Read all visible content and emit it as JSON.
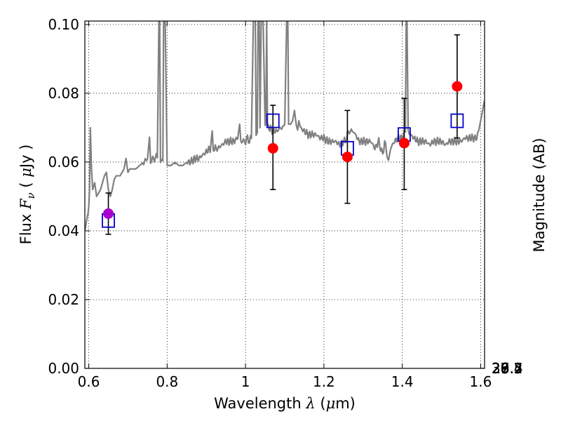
{
  "chart_data": {
    "type": "scatter",
    "xlabel_text": "Wavelength",
    "xlabel_symbol": "λ",
    "xlabel_unit_open": " (",
    "xlabel_unit_symbol": "μ",
    "xlabel_unit_close": "m)",
    "ylabel_text": "Flux",
    "ylabel_symbol": "F",
    "ylabel_sub": "ν",
    "ylabel_unit_open": " ( ",
    "ylabel_unit_symbol": "μ",
    "ylabel_unit_close": "Jy )",
    "y2label": "Magnitude (AB)",
    "xlim": [
      0.59,
      1.61
    ],
    "ylim": [
      0.0,
      0.101
    ],
    "grid": true,
    "x_ticks": [
      {
        "value": 0.6,
        "label": "0.6"
      },
      {
        "value": 0.8,
        "label": "0.8"
      },
      {
        "value": 1.0,
        "label": "1"
      },
      {
        "value": 1.2,
        "label": "1.2"
      },
      {
        "value": 1.4,
        "label": "1.4"
      },
      {
        "value": 1.6,
        "label": "1.6"
      }
    ],
    "y_ticks": [
      {
        "value": 0.0,
        "label": "0.00"
      },
      {
        "value": 0.02,
        "label": "0.02"
      },
      {
        "value": 0.04,
        "label": "0.04"
      },
      {
        "value": 0.06,
        "label": "0.06"
      },
      {
        "value": 0.08,
        "label": "0.08"
      },
      {
        "value": 0.1,
        "label": "0.10"
      }
    ],
    "y2_ticks": [
      {
        "value": 26.4,
        "label": "26.4"
      },
      {
        "value": 26.5,
        "label": "26.5"
      },
      {
        "value": 26.7,
        "label": "26.7"
      },
      {
        "value": 27.0,
        "label": "27"
      },
      {
        "value": 27.2,
        "label": "27.2"
      },
      {
        "value": 27.5,
        "label": "27.5"
      },
      {
        "value": 28.0,
        "label": "28"
      },
      {
        "value": 28.5,
        "label": "28.5"
      },
      {
        "value": 29.0,
        "label": "29"
      },
      {
        "value": 30.0,
        "label": "30"
      }
    ],
    "spectrum_color": "#808080",
    "spectrum": {
      "x": [
        0.59,
        0.593,
        0.596,
        0.598,
        0.6,
        0.602,
        0.604,
        0.607,
        0.61,
        0.615,
        0.62,
        0.625,
        0.63,
        0.635,
        0.64,
        0.645,
        0.65,
        0.655,
        0.66,
        0.665,
        0.67,
        0.68,
        0.69,
        0.695,
        0.7,
        0.705,
        0.71,
        0.72,
        0.73,
        0.74,
        0.75,
        0.755,
        0.758,
        0.761,
        0.765,
        0.77,
        0.775,
        0.779,
        0.781,
        0.783,
        0.785,
        0.787,
        0.789,
        0.791,
        0.795,
        0.8,
        0.81,
        0.82,
        0.83,
        0.84,
        0.85,
        0.86,
        0.87,
        0.88,
        0.89,
        0.9,
        0.91,
        0.915,
        0.918,
        0.921,
        0.925,
        0.93,
        0.94,
        0.95,
        0.96,
        0.97,
        0.98,
        0.985,
        0.988,
        0.99,
        0.992,
        0.995,
        1.0,
        1.005,
        1.01,
        1.015,
        1.02,
        1.025,
        1.027,
        1.03,
        1.032,
        1.035,
        1.037,
        1.04,
        1.045,
        1.05,
        1.052,
        1.054,
        1.056,
        1.06,
        1.07,
        1.08,
        1.09,
        1.095,
        1.1,
        1.105,
        1.108,
        1.11,
        1.112,
        1.115,
        1.12,
        1.125,
        1.13,
        1.133,
        1.136,
        1.14,
        1.15,
        1.16,
        1.17,
        1.18,
        1.19,
        1.2,
        1.21,
        1.22,
        1.23,
        1.24,
        1.25,
        1.255,
        1.26,
        1.265,
        1.27,
        1.275,
        1.28,
        1.29,
        1.3,
        1.31,
        1.32,
        1.33,
        1.34,
        1.345,
        1.35,
        1.355,
        1.36,
        1.365,
        1.37,
        1.38,
        1.39,
        1.4,
        1.405,
        1.408,
        1.41,
        1.412,
        1.415,
        1.42,
        1.43,
        1.44,
        1.45,
        1.46,
        1.47,
        1.48,
        1.49,
        1.5,
        1.51,
        1.52,
        1.53,
        1.54,
        1.55,
        1.56,
        1.57,
        1.58,
        1.59,
        1.595,
        1.6,
        1.605,
        1.61
      ],
      "y": [
        0.04,
        0.042,
        0.044,
        0.045,
        0.047,
        0.052,
        0.07,
        0.058,
        0.052,
        0.054,
        0.05,
        0.051,
        0.052,
        0.054,
        0.056,
        0.057,
        0.052,
        0.05,
        0.052,
        0.055,
        0.056,
        0.056,
        0.058,
        0.061,
        0.057,
        0.058,
        0.058,
        0.058,
        0.059,
        0.06,
        0.061,
        0.067,
        0.06,
        0.061,
        0.061,
        0.061,
        0.062,
        0.101,
        0.101,
        0.061,
        0.06,
        0.06,
        0.061,
        0.101,
        0.101,
        0.059,
        0.059,
        0.06,
        0.059,
        0.059,
        0.06,
        0.06,
        0.061,
        0.061,
        0.062,
        0.063,
        0.064,
        0.068,
        0.064,
        0.064,
        0.064,
        0.064,
        0.065,
        0.066,
        0.066,
        0.066,
        0.067,
        0.071,
        0.066,
        0.066,
        0.066,
        0.066,
        0.066,
        0.067,
        0.066,
        0.067,
        0.101,
        0.101,
        0.068,
        0.068,
        0.101,
        0.101,
        0.07,
        0.101,
        0.101,
        0.07,
        0.072,
        0.101,
        0.07,
        0.07,
        0.069,
        0.069,
        0.07,
        0.07,
        0.071,
        0.101,
        0.101,
        0.071,
        0.071,
        0.071,
        0.072,
        0.075,
        0.07,
        0.069,
        0.072,
        0.07,
        0.069,
        0.068,
        0.068,
        0.068,
        0.067,
        0.067,
        0.066,
        0.066,
        0.066,
        0.065,
        0.066,
        0.066,
        0.068,
        0.069,
        0.069,
        0.069,
        0.068,
        0.066,
        0.066,
        0.066,
        0.066,
        0.064,
        0.066,
        0.064,
        0.062,
        0.066,
        0.063,
        0.06,
        0.064,
        0.066,
        0.067,
        0.067,
        0.068,
        0.069,
        0.101,
        0.101,
        0.069,
        0.068,
        0.067,
        0.066,
        0.066,
        0.066,
        0.065,
        0.066,
        0.066,
        0.066,
        0.065,
        0.066,
        0.066,
        0.066,
        0.066,
        0.067,
        0.067,
        0.067,
        0.067,
        0.069,
        0.072,
        0.075,
        0.078
      ]
    },
    "spectrum_stretches": [
      {
        "y_min": 0.06,
        "y_max": 0.0645,
        "amplitude": 0.0012
      },
      {
        "y_min": 0.064,
        "y_max": 0.0705,
        "amplitude": 0.0012
      }
    ],
    "squares": {
      "color": "#0000cc",
      "points": [
        {
          "x": 0.65,
          "y": 0.043
        },
        {
          "x": 1.07,
          "y": 0.072
        },
        {
          "x": 1.26,
          "y": 0.064
        },
        {
          "x": 1.405,
          "y": 0.068
        },
        {
          "x": 1.54,
          "y": 0.072
        }
      ]
    },
    "measurements": {
      "points": [
        {
          "x": 0.65,
          "y": 0.045,
          "yerr_low": 0.039,
          "yerr_high": 0.051,
          "color": "#aa00cc"
        },
        {
          "x": 1.07,
          "y": 0.064,
          "yerr_low": 0.052,
          "yerr_high": 0.0765,
          "color": "#ff0000"
        },
        {
          "x": 1.26,
          "y": 0.0615,
          "yerr_low": 0.048,
          "yerr_high": 0.075,
          "color": "#ff0000"
        },
        {
          "x": 1.405,
          "y": 0.0655,
          "yerr_low": 0.052,
          "yerr_high": 0.0785,
          "color": "#ff0000"
        },
        {
          "x": 1.54,
          "y": 0.082,
          "yerr_low": 0.067,
          "yerr_high": 0.097,
          "color": "#ff0000"
        }
      ]
    }
  }
}
